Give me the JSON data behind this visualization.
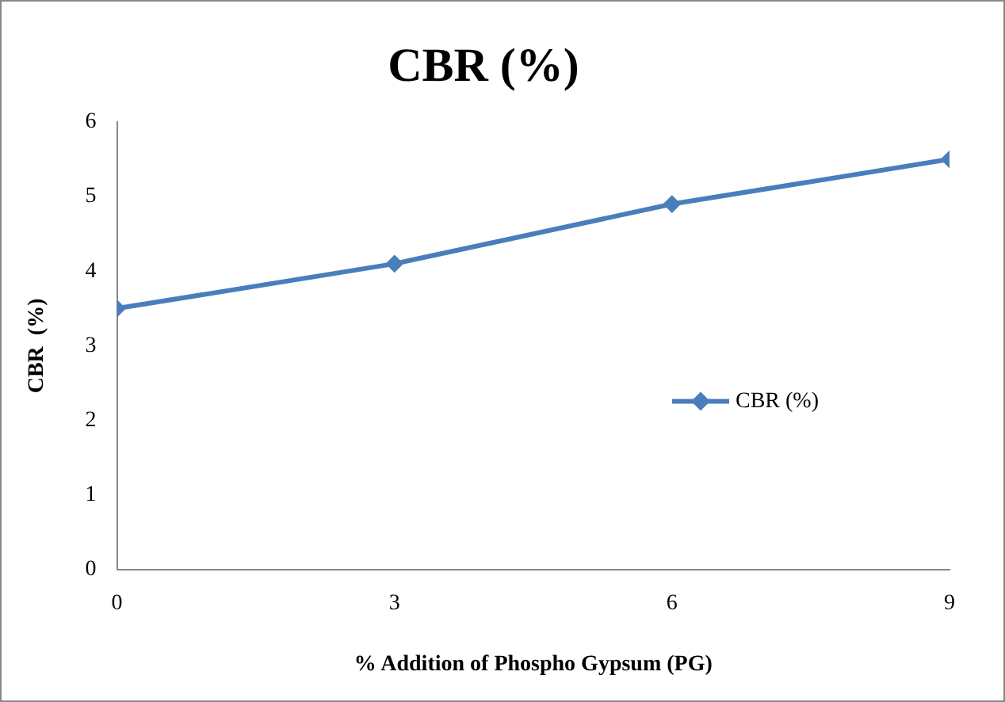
{
  "chart_data": {
    "type": "line",
    "title": "CBR (%)",
    "xlabel": "% Addition of Phospho Gypsum (PG)",
    "ylabel": "CBR  (%)",
    "x": [
      0,
      3,
      6,
      9
    ],
    "series": [
      {
        "name": "CBR (%)",
        "color": "#4a7ebb",
        "values": [
          3.5,
          4.1,
          4.9,
          5.5
        ]
      }
    ],
    "xlim": [
      0,
      9
    ],
    "xticks": [
      0,
      3,
      6,
      9
    ],
    "ylim": [
      0,
      6
    ],
    "yticks": [
      0,
      1,
      2,
      3,
      4,
      5,
      6
    ],
    "grid": false,
    "legend": "right",
    "marker": "diamond",
    "line_style": "solid"
  }
}
